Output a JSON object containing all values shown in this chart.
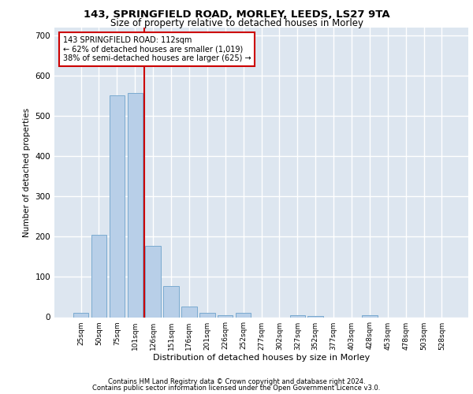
{
  "title1": "143, SPRINGFIELD ROAD, MORLEY, LEEDS, LS27 9TA",
  "title2": "Size of property relative to detached houses in Morley",
  "xlabel": "Distribution of detached houses by size in Morley",
  "ylabel": "Number of detached properties",
  "bar_color": "#b8cfe8",
  "bar_edge_color": "#7aaad0",
  "background_color": "#dde6f0",
  "grid_color": "#ffffff",
  "categories": [
    "25sqm",
    "50sqm",
    "75sqm",
    "101sqm",
    "126sqm",
    "151sqm",
    "176sqm",
    "201sqm",
    "226sqm",
    "252sqm",
    "277sqm",
    "302sqm",
    "327sqm",
    "352sqm",
    "377sqm",
    "403sqm",
    "428sqm",
    "453sqm",
    "478sqm",
    "503sqm",
    "528sqm"
  ],
  "values": [
    10,
    204,
    552,
    558,
    178,
    77,
    27,
    10,
    5,
    10,
    0,
    0,
    5,
    3,
    0,
    0,
    5,
    0,
    0,
    0,
    0
  ],
  "ylim": [
    0,
    720
  ],
  "yticks": [
    0,
    100,
    200,
    300,
    400,
    500,
    600,
    700
  ],
  "annotation_line1": "143 SPRINGFIELD ROAD: 112sqm",
  "annotation_line2": "← 62% of detached houses are smaller (1,019)",
  "annotation_line3": "38% of semi-detached houses are larger (625) →",
  "vline_color": "#cc0000",
  "annotation_box_edge": "#cc0000",
  "footer1": "Contains HM Land Registry data © Crown copyright and database right 2024.",
  "footer2": "Contains public sector information licensed under the Open Government Licence v3.0.",
  "vline_x_index": 3.5
}
